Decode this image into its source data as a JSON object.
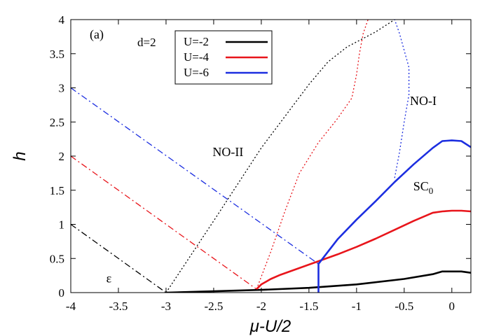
{
  "chart_data": {
    "type": "line",
    "title": "",
    "xlabel": "μ-U/2",
    "ylabel": "h",
    "xlim": [
      -4,
      0.2
    ],
    "ylim": [
      0,
      4
    ],
    "grid": false,
    "legend_position": "top-left",
    "x_ticks": [
      "-4",
      "-3.5",
      "-3",
      "-2.5",
      "-2",
      "-1.5",
      "-1",
      "-0.5",
      "0"
    ],
    "y_ticks": [
      "0",
      "0.5",
      "1",
      "1.5",
      "2",
      "2.5",
      "3",
      "3.5",
      "4"
    ],
    "panel_label": "(a)",
    "legend_title": "d=2",
    "colors": {
      "U=-2": "#000000",
      "U=-4": "#e8151b",
      "U=-6": "#1c2ee0"
    },
    "series": [
      {
        "name": "U=-2",
        "style": "solid",
        "x": [
          -3.0,
          -2.5,
          -2.0,
          -1.5,
          -1.0,
          -0.5,
          -0.2,
          -0.1,
          0.0,
          0.1,
          0.2
        ],
        "y": [
          0.0,
          0.02,
          0.04,
          0.07,
          0.12,
          0.2,
          0.27,
          0.31,
          0.31,
          0.31,
          0.29
        ]
      },
      {
        "name": "U=-4",
        "style": "solid",
        "x": [
          -2.05,
          -2.0,
          -1.9,
          -1.8,
          -1.6,
          -1.4,
          -1.2,
          -1.0,
          -0.8,
          -0.6,
          -0.4,
          -0.2,
          -0.1,
          0.0,
          0.1,
          0.2
        ],
        "y": [
          0.05,
          0.12,
          0.2,
          0.26,
          0.36,
          0.46,
          0.56,
          0.67,
          0.79,
          0.92,
          1.05,
          1.17,
          1.19,
          1.2,
          1.2,
          1.19
        ]
      },
      {
        "name": "U=-6",
        "style": "solid",
        "x": [
          -1.4,
          -1.4,
          -1.4,
          -1.2,
          -1.0,
          -0.8,
          -0.6,
          -0.4,
          -0.2,
          -0.1,
          0.0,
          0.1,
          0.2
        ],
        "y": [
          0.0,
          0.42,
          0.42,
          0.78,
          1.07,
          1.34,
          1.62,
          1.88,
          2.12,
          2.22,
          2.23,
          2.22,
          2.13
        ]
      },
      {
        "name": "",
        "color": "#000000",
        "style": "dotted",
        "x": [
          -3.0,
          -2.5,
          -2.0,
          -1.5,
          -1.3,
          -1.1,
          -0.8,
          -0.6
        ],
        "y": [
          0.0,
          1.05,
          2.12,
          3.05,
          3.38,
          3.6,
          3.82,
          4.0
        ]
      },
      {
        "name": "",
        "color": "#e8151b",
        "style": "dotted",
        "x": [
          -2.05,
          -1.9,
          -1.75,
          -1.6,
          -1.4,
          -1.2,
          -1.05,
          -1.0,
          -0.97,
          -0.93,
          -0.88
        ],
        "y": [
          0.05,
          0.6,
          1.2,
          1.75,
          2.2,
          2.55,
          2.85,
          3.2,
          3.5,
          3.8,
          4.0
        ]
      },
      {
        "name": "",
        "color": "#1c2ee0",
        "style": "dotted",
        "x": [
          -0.6,
          -0.55,
          -0.5,
          -0.45,
          -0.45,
          -0.5,
          -0.55,
          -0.6
        ],
        "y": [
          1.68,
          2.05,
          2.5,
          2.9,
          3.3,
          3.55,
          3.8,
          4.0
        ]
      },
      {
        "name": "",
        "color": "#000000",
        "style": "dashdot",
        "x": [
          -4.0,
          -3.0
        ],
        "y": [
          1.0,
          0.0
        ]
      },
      {
        "name": "",
        "color": "#e8151b",
        "style": "dashdot",
        "x": [
          -4.0,
          -2.05
        ],
        "y": [
          2.0,
          0.05
        ]
      },
      {
        "name": "",
        "color": "#1c2ee0",
        "style": "dashdot",
        "x": [
          -4.0,
          -1.4
        ],
        "y": [
          3.0,
          0.42
        ]
      }
    ],
    "annotations": [
      {
        "text": "NO-II",
        "x": -2.35,
        "y": 2.0
      },
      {
        "text": "NO-I",
        "x": -0.3,
        "y": 2.75
      },
      {
        "text": "SC",
        "sub": "0",
        "x": -0.3,
        "y": 1.5
      },
      {
        "text": "ε",
        "x": -3.6,
        "y": 0.15
      }
    ]
  }
}
